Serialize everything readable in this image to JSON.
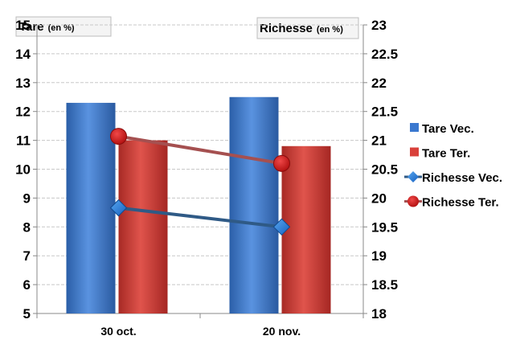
{
  "chart_data": {
    "type": "bar",
    "categories": [
      "30 oct.",
      "20 nov."
    ],
    "left_axis_label": {
      "main": "Tare",
      "unit": "(en %)"
    },
    "right_axis_label": {
      "main": "Richesse",
      "unit": "(en %)"
    },
    "ylim_left": [
      5,
      15
    ],
    "yticks_left": [
      "5",
      "6",
      "7",
      "8",
      "9",
      "10",
      "11",
      "12",
      "13",
      "14",
      "15"
    ],
    "ylim_right": [
      18,
      23
    ],
    "yticks_right": [
      "18",
      "18.5",
      "19",
      "19.5",
      "20",
      "20.5",
      "21",
      "21.5",
      "22",
      "22.5",
      "23"
    ],
    "bar_series": [
      {
        "name": "Tare Vec.",
        "axis": "left",
        "values": [
          12.3,
          12.5
        ],
        "color": "#3a78cf"
      },
      {
        "name": "Tare Ter.",
        "axis": "left",
        "values": [
          11.0,
          10.8
        ],
        "color": "#d9403a"
      }
    ],
    "line_series": [
      {
        "name": "Richesse Vec.",
        "axis": "right",
        "marker": "diamond",
        "values": [
          19.83,
          19.5
        ],
        "color": "#1f7ad8",
        "line_color": "#2f5a86"
      },
      {
        "name": "Richesse Ter.",
        "axis": "right",
        "marker": "circle",
        "values": [
          21.07,
          20.6
        ],
        "color": "#d01818",
        "line_color": "#a55050"
      }
    ],
    "grid": true,
    "legend_position": "right"
  }
}
